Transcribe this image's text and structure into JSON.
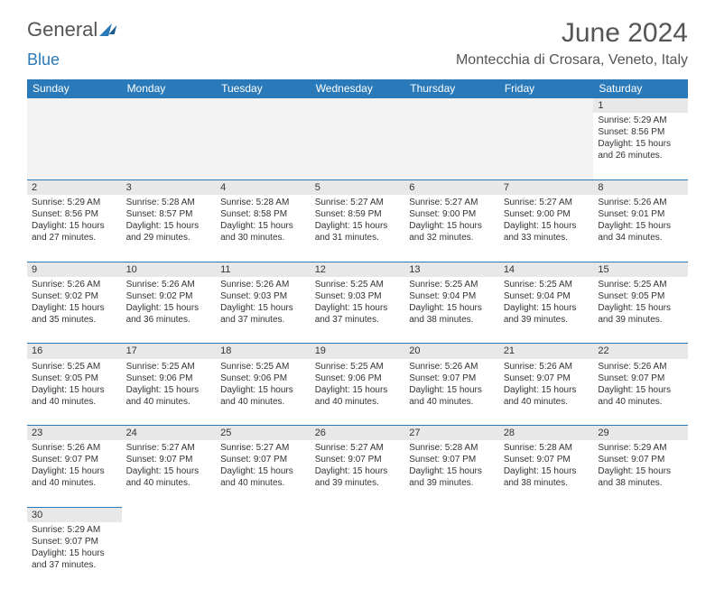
{
  "logo": {
    "part1": "General",
    "part2": "Blue"
  },
  "title": "June 2024",
  "location": "Montecchia di Crosara, Veneto, Italy",
  "weekdays": [
    "Sunday",
    "Monday",
    "Tuesday",
    "Wednesday",
    "Thursday",
    "Friday",
    "Saturday"
  ],
  "colors": {
    "header_bg": "#2a7ab9",
    "header_text": "#ffffff",
    "daynum_bg": "#e8e8e8",
    "empty_bg": "#f3f3f3",
    "border": "#2a7ab9",
    "text": "#333333",
    "title_text": "#555555"
  },
  "cells": {
    "r0c6": {
      "num": "1",
      "sunrise": "Sunrise: 5:29 AM",
      "sunset": "Sunset: 8:56 PM",
      "day": "Daylight: 15 hours and 26 minutes."
    },
    "r1c0": {
      "num": "2",
      "sunrise": "Sunrise: 5:29 AM",
      "sunset": "Sunset: 8:56 PM",
      "day": "Daylight: 15 hours and 27 minutes."
    },
    "r1c1": {
      "num": "3",
      "sunrise": "Sunrise: 5:28 AM",
      "sunset": "Sunset: 8:57 PM",
      "day": "Daylight: 15 hours and 29 minutes."
    },
    "r1c2": {
      "num": "4",
      "sunrise": "Sunrise: 5:28 AM",
      "sunset": "Sunset: 8:58 PM",
      "day": "Daylight: 15 hours and 30 minutes."
    },
    "r1c3": {
      "num": "5",
      "sunrise": "Sunrise: 5:27 AM",
      "sunset": "Sunset: 8:59 PM",
      "day": "Daylight: 15 hours and 31 minutes."
    },
    "r1c4": {
      "num": "6",
      "sunrise": "Sunrise: 5:27 AM",
      "sunset": "Sunset: 9:00 PM",
      "day": "Daylight: 15 hours and 32 minutes."
    },
    "r1c5": {
      "num": "7",
      "sunrise": "Sunrise: 5:27 AM",
      "sunset": "Sunset: 9:00 PM",
      "day": "Daylight: 15 hours and 33 minutes."
    },
    "r1c6": {
      "num": "8",
      "sunrise": "Sunrise: 5:26 AM",
      "sunset": "Sunset: 9:01 PM",
      "day": "Daylight: 15 hours and 34 minutes."
    },
    "r2c0": {
      "num": "9",
      "sunrise": "Sunrise: 5:26 AM",
      "sunset": "Sunset: 9:02 PM",
      "day": "Daylight: 15 hours and 35 minutes."
    },
    "r2c1": {
      "num": "10",
      "sunrise": "Sunrise: 5:26 AM",
      "sunset": "Sunset: 9:02 PM",
      "day": "Daylight: 15 hours and 36 minutes."
    },
    "r2c2": {
      "num": "11",
      "sunrise": "Sunrise: 5:26 AM",
      "sunset": "Sunset: 9:03 PM",
      "day": "Daylight: 15 hours and 37 minutes."
    },
    "r2c3": {
      "num": "12",
      "sunrise": "Sunrise: 5:25 AM",
      "sunset": "Sunset: 9:03 PM",
      "day": "Daylight: 15 hours and 37 minutes."
    },
    "r2c4": {
      "num": "13",
      "sunrise": "Sunrise: 5:25 AM",
      "sunset": "Sunset: 9:04 PM",
      "day": "Daylight: 15 hours and 38 minutes."
    },
    "r2c5": {
      "num": "14",
      "sunrise": "Sunrise: 5:25 AM",
      "sunset": "Sunset: 9:04 PM",
      "day": "Daylight: 15 hours and 39 minutes."
    },
    "r2c6": {
      "num": "15",
      "sunrise": "Sunrise: 5:25 AM",
      "sunset": "Sunset: 9:05 PM",
      "day": "Daylight: 15 hours and 39 minutes."
    },
    "r3c0": {
      "num": "16",
      "sunrise": "Sunrise: 5:25 AM",
      "sunset": "Sunset: 9:05 PM",
      "day": "Daylight: 15 hours and 40 minutes."
    },
    "r3c1": {
      "num": "17",
      "sunrise": "Sunrise: 5:25 AM",
      "sunset": "Sunset: 9:06 PM",
      "day": "Daylight: 15 hours and 40 minutes."
    },
    "r3c2": {
      "num": "18",
      "sunrise": "Sunrise: 5:25 AM",
      "sunset": "Sunset: 9:06 PM",
      "day": "Daylight: 15 hours and 40 minutes."
    },
    "r3c3": {
      "num": "19",
      "sunrise": "Sunrise: 5:25 AM",
      "sunset": "Sunset: 9:06 PM",
      "day": "Daylight: 15 hours and 40 minutes."
    },
    "r3c4": {
      "num": "20",
      "sunrise": "Sunrise: 5:26 AM",
      "sunset": "Sunset: 9:07 PM",
      "day": "Daylight: 15 hours and 40 minutes."
    },
    "r3c5": {
      "num": "21",
      "sunrise": "Sunrise: 5:26 AM",
      "sunset": "Sunset: 9:07 PM",
      "day": "Daylight: 15 hours and 40 minutes."
    },
    "r3c6": {
      "num": "22",
      "sunrise": "Sunrise: 5:26 AM",
      "sunset": "Sunset: 9:07 PM",
      "day": "Daylight: 15 hours and 40 minutes."
    },
    "r4c0": {
      "num": "23",
      "sunrise": "Sunrise: 5:26 AM",
      "sunset": "Sunset: 9:07 PM",
      "day": "Daylight: 15 hours and 40 minutes."
    },
    "r4c1": {
      "num": "24",
      "sunrise": "Sunrise: 5:27 AM",
      "sunset": "Sunset: 9:07 PM",
      "day": "Daylight: 15 hours and 40 minutes."
    },
    "r4c2": {
      "num": "25",
      "sunrise": "Sunrise: 5:27 AM",
      "sunset": "Sunset: 9:07 PM",
      "day": "Daylight: 15 hours and 40 minutes."
    },
    "r4c3": {
      "num": "26",
      "sunrise": "Sunrise: 5:27 AM",
      "sunset": "Sunset: 9:07 PM",
      "day": "Daylight: 15 hours and 39 minutes."
    },
    "r4c4": {
      "num": "27",
      "sunrise": "Sunrise: 5:28 AM",
      "sunset": "Sunset: 9:07 PM",
      "day": "Daylight: 15 hours and 39 minutes."
    },
    "r4c5": {
      "num": "28",
      "sunrise": "Sunrise: 5:28 AM",
      "sunset": "Sunset: 9:07 PM",
      "day": "Daylight: 15 hours and 38 minutes."
    },
    "r4c6": {
      "num": "29",
      "sunrise": "Sunrise: 5:29 AM",
      "sunset": "Sunset: 9:07 PM",
      "day": "Daylight: 15 hours and 38 minutes."
    },
    "r5c0": {
      "num": "30",
      "sunrise": "Sunrise: 5:29 AM",
      "sunset": "Sunset: 9:07 PM",
      "day": "Daylight: 15 hours and 37 minutes."
    }
  }
}
